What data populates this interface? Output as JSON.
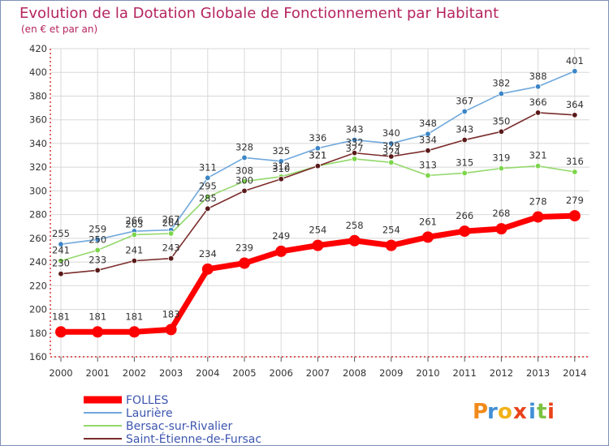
{
  "chart_data": {
    "type": "line",
    "title": "Evolution de la Dotation Globale de Fonctionnement par Habitant",
    "subtitle": "(en € et par an)",
    "x": [
      "2000",
      "2001",
      "2002",
      "2003",
      "2004",
      "2005",
      "2006",
      "2007",
      "2008",
      "2009",
      "2010",
      "2011",
      "2012",
      "2013",
      "2014"
    ],
    "ylim": [
      160,
      420
    ],
    "yticks": [
      160,
      180,
      200,
      220,
      240,
      260,
      280,
      300,
      320,
      340,
      360,
      380,
      400,
      420
    ],
    "grid": true,
    "series": [
      {
        "name": "FOLLES",
        "color": "#ff0000",
        "values": [
          181,
          181,
          181,
          183,
          234,
          239,
          249,
          254,
          258,
          254,
          261,
          266,
          268,
          278,
          279
        ],
        "labels": [
          "181",
          "181",
          "181",
          "183",
          "234",
          "239",
          "249",
          "254",
          "258",
          "254",
          "261",
          "266",
          "268",
          "278",
          "279"
        ]
      },
      {
        "name": "Laurière",
        "color": "#6fa8dc",
        "marker": "#3d85c6",
        "values": [
          255,
          259,
          266,
          267,
          311,
          328,
          325,
          336,
          343,
          340,
          348,
          367,
          382,
          388,
          401
        ],
        "labels": [
          "255",
          "259",
          "266",
          "267",
          "311",
          "328",
          "325",
          "336",
          "343",
          "340",
          "348",
          "367",
          "382",
          "388",
          "401"
        ]
      },
      {
        "name": "Bersac-sur-Rivalier",
        "color": "#93d86b",
        "marker": "#7cd64a",
        "values": [
          241,
          250,
          263,
          264,
          295,
          308,
          312,
          321,
          327,
          324,
          313,
          315,
          319,
          321,
          316
        ],
        "labels": [
          "241",
          "250",
          "263",
          "264",
          "295",
          "308",
          "312",
          "321",
          "327",
          "324",
          "313",
          "315",
          "319",
          "321",
          "316"
        ]
      },
      {
        "name": "Saint-Étienne-de-Fursac",
        "color": "#7b2c2c",
        "marker": "#5a1a1a",
        "values": [
          230,
          233,
          241,
          243,
          285,
          300,
          310,
          321,
          332,
          329,
          334,
          343,
          350,
          366,
          364
        ],
        "labels": [
          "230",
          "233",
          "241",
          "243",
          "285",
          "300",
          "310",
          "321",
          "332",
          "329",
          "334",
          "343",
          "350",
          "366",
          "364"
        ]
      }
    ],
    "legend": [
      "FOLLES",
      "Laurière",
      "Bersac-sur-Rivalier",
      "Saint-Étienne-de-Fursac"
    ],
    "watermark": "Proxiti"
  }
}
